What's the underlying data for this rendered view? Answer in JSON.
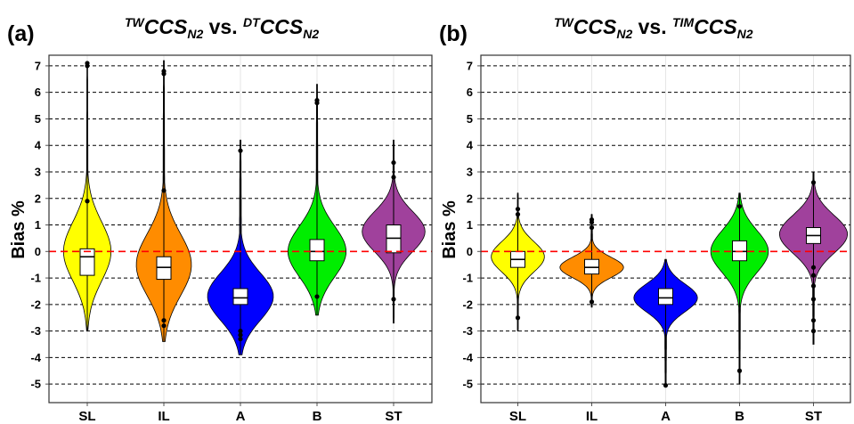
{
  "colors": {
    "SL": "#ffff00",
    "IL": "#ff8c00",
    "A": "#0000ff",
    "B": "#00ee00",
    "ST": "#a0419c",
    "zero_line": "#ff0000",
    "grid_dash": "#000000"
  },
  "chart_data": [
    {
      "type": "violin",
      "panel_label": "(a)",
      "title_parts": {
        "sup1": "TW",
        "main1": "CCS",
        "sub1": "N2",
        "mid": " vs. ",
        "sup2": "DT",
        "main2": "CCS",
        "sub2": "N2"
      },
      "ylabel": "Bias %",
      "ylim": [
        -5.7,
        7.4
      ],
      "yticks": [
        -5,
        -4,
        -3,
        -2,
        -1,
        0,
        1,
        2,
        3,
        4,
        5,
        6,
        7
      ],
      "categories": [
        "SL",
        "IL",
        "A",
        "B",
        "ST"
      ],
      "series": [
        {
          "category": "SL",
          "min": -3.0,
          "max": 7.15,
          "mode": 0.0,
          "width": 0.62,
          "q1": -0.9,
          "median": -0.2,
          "q3": 0.1,
          "outliers": [
            1.9,
            7.0,
            7.1
          ]
        },
        {
          "category": "IL",
          "min": -3.4,
          "max": 7.2,
          "mode": -0.5,
          "width": 0.72,
          "q1": -1.05,
          "median": -0.6,
          "q3": -0.2,
          "outliers": [
            2.3,
            6.7,
            6.8,
            -2.6,
            -2.8
          ]
        },
        {
          "category": "A",
          "min": -3.9,
          "max": 4.2,
          "mode": -1.7,
          "width": 0.86,
          "q1": -2.0,
          "median": -1.75,
          "q3": -1.4,
          "outliers": [
            3.8,
            -3.0,
            -3.15,
            -3.3
          ]
        },
        {
          "category": "B",
          "min": -2.4,
          "max": 6.3,
          "mode": 0.0,
          "width": 0.76,
          "q1": -0.35,
          "median": 0.0,
          "q3": 0.45,
          "outliers": [
            5.6,
            5.7,
            -1.7
          ]
        },
        {
          "category": "ST",
          "min": -2.7,
          "max": 4.2,
          "mode": 0.75,
          "width": 0.82,
          "q1": -0.05,
          "median": 0.5,
          "q3": 1.0,
          "outliers": [
            2.8,
            3.35,
            -1.8
          ]
        }
      ]
    },
    {
      "type": "violin",
      "panel_label": "(b)",
      "title_parts": {
        "sup1": "TW",
        "main1": "CCS",
        "sub1": "N2",
        "mid": " vs. ",
        "sup2": "TIM",
        "main2": "CCS",
        "sub2": "N2"
      },
      "ylabel": "Bias %",
      "ylim": [
        -5.7,
        7.4
      ],
      "yticks": [
        -5,
        -4,
        -3,
        -2,
        -1,
        0,
        1,
        2,
        3,
        4,
        5,
        6,
        7
      ],
      "categories": [
        "SL",
        "IL",
        "A",
        "B",
        "ST"
      ],
      "series": [
        {
          "category": "SL",
          "min": -3.0,
          "max": 2.2,
          "mode": -0.2,
          "width": 0.72,
          "q1": -0.6,
          "median": -0.3,
          "q3": 0.0,
          "outliers": [
            1.4,
            1.6,
            -2.5
          ]
        },
        {
          "category": "IL",
          "min": -2.1,
          "max": 1.4,
          "mode": -0.6,
          "width": 0.86,
          "q1": -0.85,
          "median": -0.6,
          "q3": -0.3,
          "outliers": [
            0.9,
            1.1,
            1.2,
            -1.9
          ]
        },
        {
          "category": "A",
          "min": -5.1,
          "max": -0.3,
          "mode": -1.75,
          "width": 0.86,
          "q1": -2.0,
          "median": -1.75,
          "q3": -1.4,
          "outliers": [
            -5.05
          ]
        },
        {
          "category": "B",
          "min": -5.0,
          "max": 2.2,
          "mode": 0.0,
          "width": 0.78,
          "q1": -0.35,
          "median": 0.0,
          "q3": 0.4,
          "outliers": [
            1.7,
            -4.5
          ]
        },
        {
          "category": "ST",
          "min": -3.5,
          "max": 3.0,
          "mode": 0.65,
          "width": 0.92,
          "q1": 0.3,
          "median": 0.6,
          "q3": 0.9,
          "outliers": [
            2.6,
            -0.6,
            -0.9,
            -1.3,
            -1.8,
            -2.6,
            -3.0
          ]
        }
      ]
    }
  ]
}
